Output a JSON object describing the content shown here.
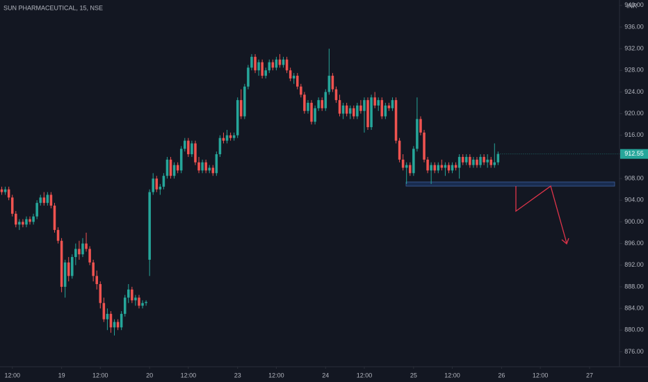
{
  "chart_data": {
    "type": "candlestick",
    "title": "SUN PHARMACEUTICAL, 15, NSE",
    "currency": "INR",
    "up_color": "#26a69a",
    "down_color": "#ef5350",
    "grid": false,
    "ylim": [
      874,
      941
    ],
    "yticks": [
      {
        "value": 876,
        "label": "876.00"
      },
      {
        "value": 880,
        "label": "880.00"
      },
      {
        "value": 884,
        "label": "884.00"
      },
      {
        "value": 888,
        "label": "888.00"
      },
      {
        "value": 892,
        "label": "892.00"
      },
      {
        "value": 896,
        "label": "896.00"
      },
      {
        "value": 900,
        "label": "900.00"
      },
      {
        "value": 904,
        "label": "904.00"
      },
      {
        "value": 908,
        "label": "908.00"
      },
      {
        "value": 912,
        "label": "912.00"
      },
      {
        "value": 916,
        "label": "916.00"
      },
      {
        "value": 920,
        "label": "920.00"
      },
      {
        "value": 924,
        "label": "924.00"
      },
      {
        "value": 928,
        "label": "928.00"
      },
      {
        "value": 932,
        "label": "932.00"
      },
      {
        "value": 936,
        "label": "936.00"
      },
      {
        "value": 940,
        "label": "940.00"
      }
    ],
    "xlim": [
      -0.5,
      175.5
    ],
    "xticks": [
      {
        "value": 3,
        "label": "12:00"
      },
      {
        "value": 17,
        "label": "19"
      },
      {
        "value": 28,
        "label": "12:00"
      },
      {
        "value": 42,
        "label": "20"
      },
      {
        "value": 53,
        "label": "12:00"
      },
      {
        "value": 67,
        "label": "23"
      },
      {
        "value": 78,
        "label": "12:00"
      },
      {
        "value": 92,
        "label": "24"
      },
      {
        "value": 103,
        "label": "12:00"
      },
      {
        "value": 117,
        "label": "25"
      },
      {
        "value": 128,
        "label": "12:00"
      },
      {
        "value": 142,
        "label": "26"
      },
      {
        "value": 153,
        "label": "12:00"
      },
      {
        "value": 167,
        "label": "27"
      }
    ],
    "last_price": 912.55,
    "candles": [
      [
        906,
        906.5,
        905,
        905.5
      ],
      [
        905.5,
        906.5,
        905,
        906
      ],
      [
        906,
        906.5,
        904,
        904.5
      ],
      [
        904.5,
        905,
        901,
        901.5
      ],
      [
        901.5,
        902,
        899,
        899.5
      ],
      [
        899.5,
        900.5,
        898.5,
        900
      ],
      [
        900,
        900.5,
        899,
        899.5
      ],
      [
        899.5,
        901,
        899,
        900.5
      ],
      [
        900.5,
        901,
        899.5,
        900
      ],
      [
        900,
        901.5,
        899.5,
        901
      ],
      [
        901,
        904,
        900.5,
        903.5
      ],
      [
        903.5,
        905,
        903,
        904.5
      ],
      [
        904.5,
        905.5,
        903,
        903.5
      ],
      [
        903.5,
        905.5,
        903,
        905
      ],
      [
        905,
        905.5,
        902.5,
        903
      ],
      [
        903,
        903.5,
        898,
        898.5
      ],
      [
        898.5,
        899,
        896,
        896.5
      ],
      [
        896.5,
        897,
        887,
        888
      ],
      [
        888,
        893,
        886,
        892.5
      ],
      [
        892.5,
        893.5,
        889,
        890
      ],
      [
        890,
        894,
        889.5,
        893.5
      ],
      [
        893.5,
        896,
        892,
        895
      ],
      [
        895,
        896.5,
        893,
        894
      ],
      [
        894,
        897,
        893.5,
        896
      ],
      [
        896,
        898,
        894.5,
        895
      ],
      [
        895,
        895.5,
        892,
        892.5
      ],
      [
        892.5,
        893,
        889,
        890
      ],
      [
        890,
        891,
        887.5,
        888.5
      ],
      [
        888.5,
        889,
        884,
        885
      ],
      [
        885,
        886,
        881.5,
        882
      ],
      [
        882,
        884,
        880,
        883
      ],
      [
        883,
        883.5,
        879.5,
        880.5
      ],
      [
        880.5,
        882,
        879,
        881.5
      ],
      [
        881.5,
        882,
        880,
        880.5
      ],
      [
        880.5,
        883.5,
        880,
        883
      ],
      [
        883,
        886.5,
        882.5,
        886
      ],
      [
        886,
        888.5,
        885,
        887.5
      ],
      [
        887.5,
        888,
        885,
        885.5
      ],
      [
        885.5,
        886.5,
        884.5,
        886
      ],
      [
        886,
        886.5,
        884,
        884.5
      ],
      [
        884.5,
        885.5,
        884,
        885
      ],
      [
        885,
        885.5,
        884.5,
        885.2
      ],
      [
        893,
        906,
        890,
        905.5
      ],
      [
        905.5,
        909,
        905,
        908
      ],
      [
        908,
        908.5,
        905.5,
        906
      ],
      [
        906,
        907,
        905,
        906.5
      ],
      [
        906.5,
        909,
        906,
        908.5
      ],
      [
        908.5,
        912,
        908,
        911.5
      ],
      [
        911.5,
        912,
        908,
        908.5
      ],
      [
        908.5,
        911,
        908,
        910.5
      ],
      [
        910.5,
        911,
        909,
        909.5
      ],
      [
        909.5,
        914,
        909,
        913.5
      ],
      [
        913.5,
        915.5,
        913,
        915
      ],
      [
        915,
        915.5,
        912,
        912.5
      ],
      [
        912.5,
        915,
        912,
        914.5
      ],
      [
        914.5,
        915,
        910.5,
        911
      ],
      [
        911,
        912,
        909,
        909.5
      ],
      [
        909.5,
        911.5,
        909,
        911
      ],
      [
        911,
        911.5,
        909,
        909.5
      ],
      [
        909.5,
        910.5,
        909,
        910
      ],
      [
        910,
        910.5,
        908.5,
        909
      ],
      [
        909,
        913,
        908.5,
        912.5
      ],
      [
        912.5,
        916,
        912,
        915.5
      ],
      [
        915.5,
        916.5,
        914.5,
        915
      ],
      [
        915,
        917,
        914.5,
        916
      ],
      [
        916,
        916.5,
        915,
        915.5
      ],
      [
        915.5,
        916.5,
        915,
        916
      ],
      [
        916,
        923,
        915.5,
        922.5
      ],
      [
        922.5,
        924.5,
        919,
        919.5
      ],
      [
        919.5,
        925.5,
        919,
        925
      ],
      [
        925,
        929,
        924.5,
        928.5
      ],
      [
        928.5,
        931,
        928,
        930.5
      ],
      [
        930.5,
        931,
        927.5,
        928
      ],
      [
        928,
        930,
        927,
        929.5
      ],
      [
        929.5,
        930,
        926.5,
        927
      ],
      [
        927,
        928.5,
        926.5,
        928
      ],
      [
        928,
        930,
        927.5,
        929.5
      ],
      [
        929.5,
        930,
        928,
        928.5
      ],
      [
        928.5,
        930.5,
        928,
        930
      ],
      [
        930,
        931,
        928.5,
        929
      ],
      [
        929,
        930.5,
        928.5,
        930
      ],
      [
        930,
        930.5,
        927.5,
        928
      ],
      [
        928,
        928.5,
        926,
        926.5
      ],
      [
        926.5,
        927.5,
        925.5,
        927
      ],
      [
        927,
        927.5,
        924.5,
        925
      ],
      [
        925,
        925.5,
        923,
        923.5
      ],
      [
        923.5,
        924,
        920,
        920.5
      ],
      [
        920.5,
        922.5,
        920,
        922
      ],
      [
        922,
        922.5,
        918,
        918.5
      ],
      [
        918.5,
        921.5,
        918,
        921
      ],
      [
        921,
        923,
        920.5,
        922.5
      ],
      [
        922.5,
        923,
        920.5,
        921
      ],
      [
        921,
        924.5,
        920.5,
        924
      ],
      [
        924,
        932,
        923.5,
        927
      ],
      [
        927,
        927.5,
        924,
        924.5
      ],
      [
        924.5,
        925,
        922,
        922.5
      ],
      [
        922.5,
        923.5,
        919.5,
        920
      ],
      [
        920,
        922,
        919,
        921.5
      ],
      [
        921.5,
        922,
        919.5,
        920
      ],
      [
        920,
        921.5,
        919,
        921
      ],
      [
        921,
        921.5,
        919,
        919.5
      ],
      [
        919.5,
        922,
        919,
        921.5
      ],
      [
        921.5,
        922.5,
        920,
        920.5
      ],
      [
        920.5,
        923,
        916.5,
        922.5
      ],
      [
        922.5,
        923,
        917,
        917.5
      ],
      [
        917.5,
        923.5,
        917,
        923
      ],
      [
        923,
        924,
        921,
        921.5
      ],
      [
        921.5,
        923,
        920.5,
        922.5
      ],
      [
        922.5,
        923,
        919,
        919.5
      ],
      [
        919.5,
        922,
        919,
        921.5
      ],
      [
        921.5,
        922,
        920.5,
        921
      ],
      [
        921,
        923,
        920.5,
        922.5
      ],
      [
        922.5,
        923,
        914.5,
        915
      ],
      [
        915,
        915.5,
        911,
        911.5
      ],
      [
        911.5,
        912.5,
        909.5,
        910
      ],
      [
        910,
        911,
        907,
        910.5
      ],
      [
        910.5,
        911,
        908.5,
        909
      ],
      [
        909,
        914,
        908.5,
        913.5
      ],
      [
        913.5,
        923,
        913,
        919
      ],
      [
        919,
        919.5,
        916,
        916.5
      ],
      [
        916.5,
        917,
        911,
        911.5
      ],
      [
        911.5,
        912,
        909,
        909.5
      ],
      [
        909.5,
        911,
        907,
        910.5
      ],
      [
        910.5,
        911,
        909,
        909.5
      ],
      [
        909.5,
        911,
        909,
        910.5
      ],
      [
        910.5,
        911.5,
        909.5,
        910
      ],
      [
        910,
        911,
        908.5,
        910.5
      ],
      [
        910.5,
        911,
        909,
        909.5
      ],
      [
        909.5,
        911,
        909,
        910.5
      ],
      [
        910.5,
        911,
        909.5,
        910
      ],
      [
        910,
        912.5,
        908,
        912
      ],
      [
        912,
        912.5,
        910.5,
        911
      ],
      [
        911,
        912.5,
        910.5,
        912
      ],
      [
        912,
        912.5,
        910,
        910.5
      ],
      [
        910.5,
        912,
        910,
        911.5
      ],
      [
        911.5,
        912,
        910,
        910.5
      ],
      [
        910.5,
        912.5,
        910,
        912
      ],
      [
        912,
        912.5,
        910.5,
        911
      ],
      [
        911,
        912.5,
        910,
        911.5
      ],
      [
        911.5,
        912,
        910,
        910.5
      ],
      [
        910.5,
        914.5,
        910,
        911
      ],
      [
        911,
        913,
        910.5,
        912.55
      ]
    ]
  }
}
